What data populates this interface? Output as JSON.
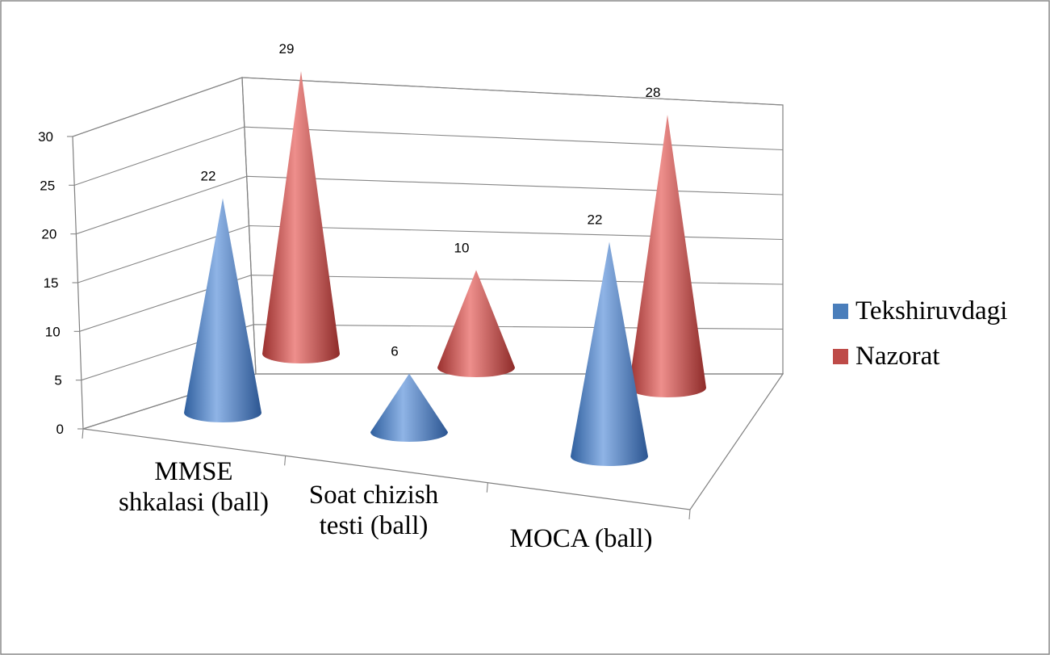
{
  "chart_data": {
    "type": "bar",
    "shape": "3d-cone",
    "categories": [
      "MMSE shkalasi (ball)",
      "Soat chizish testi (ball)",
      "MOCA (ball)"
    ],
    "category_lines": [
      [
        "MMSE",
        "shkalasi (ball)"
      ],
      [
        "Soat chizish",
        "testi (ball)"
      ],
      [
        "MOCA (ball)"
      ]
    ],
    "series": [
      {
        "name": "Tekshiruvdagi",
        "values": [
          22,
          6,
          22
        ],
        "color": "#4a7ebb"
      },
      {
        "name": "Nazorat",
        "values": [
          29,
          10,
          28
        ],
        "color": "#be4b48"
      }
    ],
    "ylim": [
      0,
      30
    ],
    "yticks": [
      "0",
      "5",
      "10",
      "15",
      "20",
      "25",
      "30"
    ],
    "data_labels": true,
    "grid": true,
    "legend": "right",
    "title": "",
    "xlabel": "",
    "ylabel": ""
  }
}
